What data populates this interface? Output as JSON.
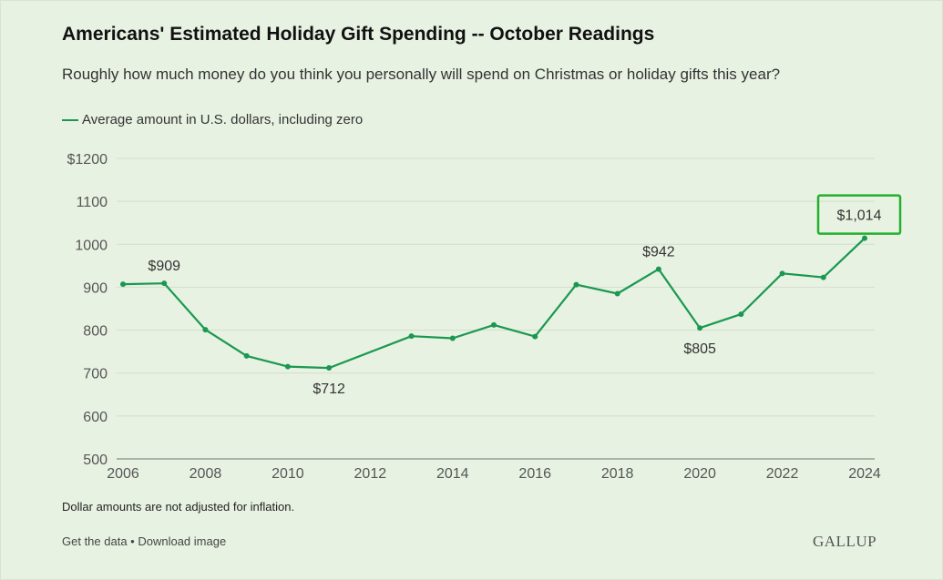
{
  "title": "Americans' Estimated Holiday Gift Spending -- October Readings",
  "subtitle": "Roughly how much money do you think you personally will spend on Christmas or holiday gifts this year?",
  "legend_label": "Average amount in U.S. dollars, including zero",
  "note": "Dollar amounts are not adjusted for inflation.",
  "links": {
    "get_data": "Get the data",
    "separator": " • ",
    "download": "Download image"
  },
  "logo": "GALLUP",
  "colors": {
    "line": "#1a9850",
    "highlight_box": "#22b02e",
    "grid": "#d3dccd"
  },
  "chart_data": {
    "type": "line",
    "title": "Americans' Estimated Holiday Gift Spending -- October Readings",
    "xlabel": "",
    "ylabel": "",
    "xlim": [
      2006,
      2024
    ],
    "ylim": [
      500,
      1200
    ],
    "y_ticks": [
      500,
      600,
      700,
      800,
      900,
      1000,
      1100,
      1200
    ],
    "y_tick_labels": [
      "500",
      "600",
      "700",
      "800",
      "900",
      "1000",
      "1100",
      "$1200"
    ],
    "x_ticks": [
      2006,
      2008,
      2010,
      2012,
      2014,
      2016,
      2018,
      2020,
      2022,
      2024
    ],
    "x_tick_labels": [
      "2006",
      "2008",
      "2010",
      "2012",
      "2014",
      "2016",
      "2018",
      "2020",
      "2022",
      "2024"
    ],
    "grid": true,
    "series": [
      {
        "name": "Average amount in U.S. dollars, including zero",
        "x": [
          2006,
          2007,
          2008,
          2009,
          2010,
          2011,
          2013,
          2014,
          2015,
          2016,
          2017,
          2018,
          2019,
          2020,
          2021,
          2022,
          2023,
          2024
        ],
        "values": [
          907,
          909,
          801,
          740,
          715,
          712,
          786,
          781,
          812,
          785,
          906,
          885,
          942,
          805,
          837,
          932,
          923,
          1014
        ]
      }
    ],
    "annotations": [
      {
        "x": 2007,
        "y": 909,
        "text": "$909",
        "position": "above"
      },
      {
        "x": 2011,
        "y": 712,
        "text": "$712",
        "position": "below"
      },
      {
        "x": 2019,
        "y": 942,
        "text": "$942",
        "position": "above"
      },
      {
        "x": 2020,
        "y": 805,
        "text": "$805",
        "position": "below"
      },
      {
        "x": 2024,
        "y": 1014,
        "text": "$1,014",
        "position": "above",
        "highlight": true
      }
    ]
  }
}
